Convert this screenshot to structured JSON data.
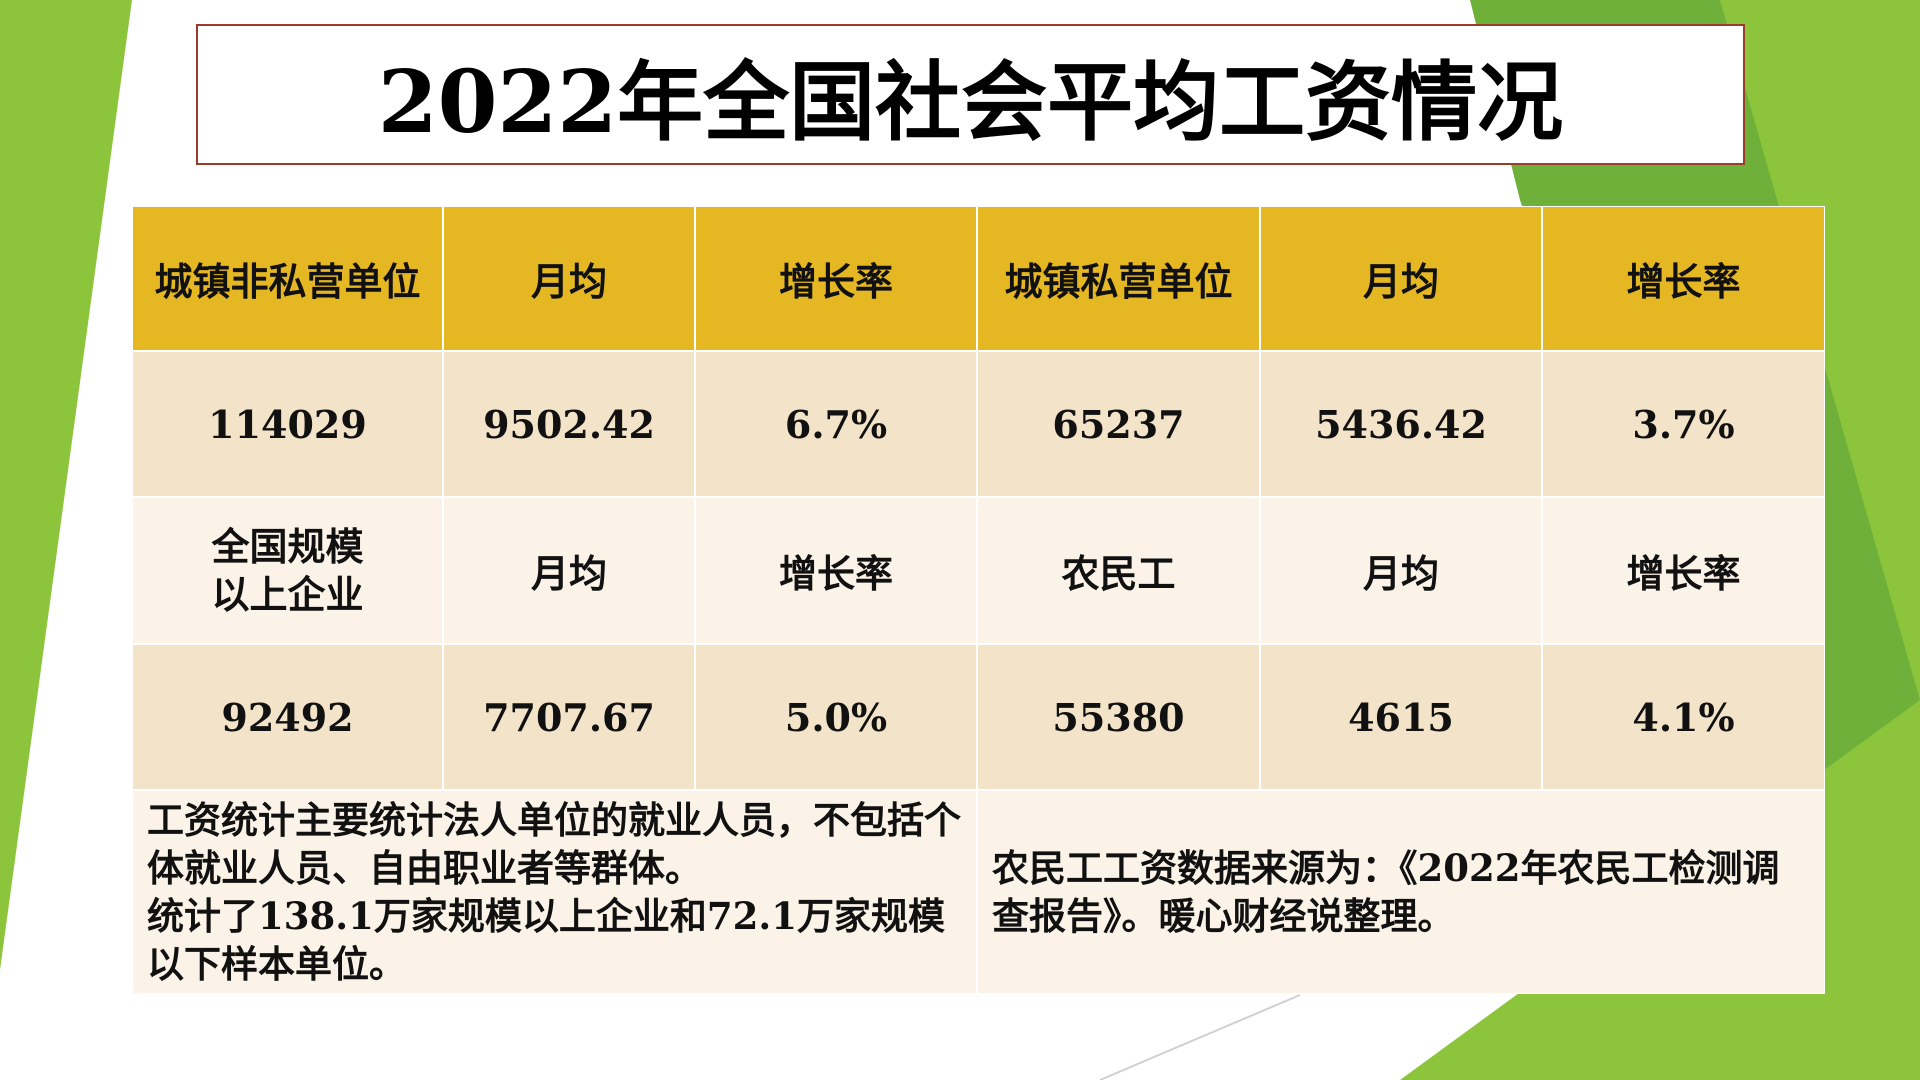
{
  "title": "2022年全国社会平均工资情况",
  "table": {
    "rows": [
      [
        "城镇非私营单位",
        "月均",
        "增长率",
        "城镇私营单位",
        "月均",
        "增长率"
      ],
      [
        "114029",
        "9502.42",
        "6.7%",
        "65237",
        "5436.42",
        "3.7%"
      ],
      [
        "全国规模以上企业",
        "月均",
        "增长率",
        "农民工",
        "月均",
        "增长率"
      ],
      [
        "92492",
        "7707.67",
        "5.0%",
        "55380",
        "4615",
        "4.1%"
      ]
    ]
  },
  "notes": {
    "left": [
      "工资统计主要统计法人单位的就业人员，不包括个体就业人员、自由职业者等群体。",
      "统计了138.1万家规模以上企业和72.1万家规模以下样本单位。"
    ],
    "right": [
      "农民工工资数据来源为：《2022年农民工检测调查报告》。暖心财经说整理。"
    ]
  }
}
